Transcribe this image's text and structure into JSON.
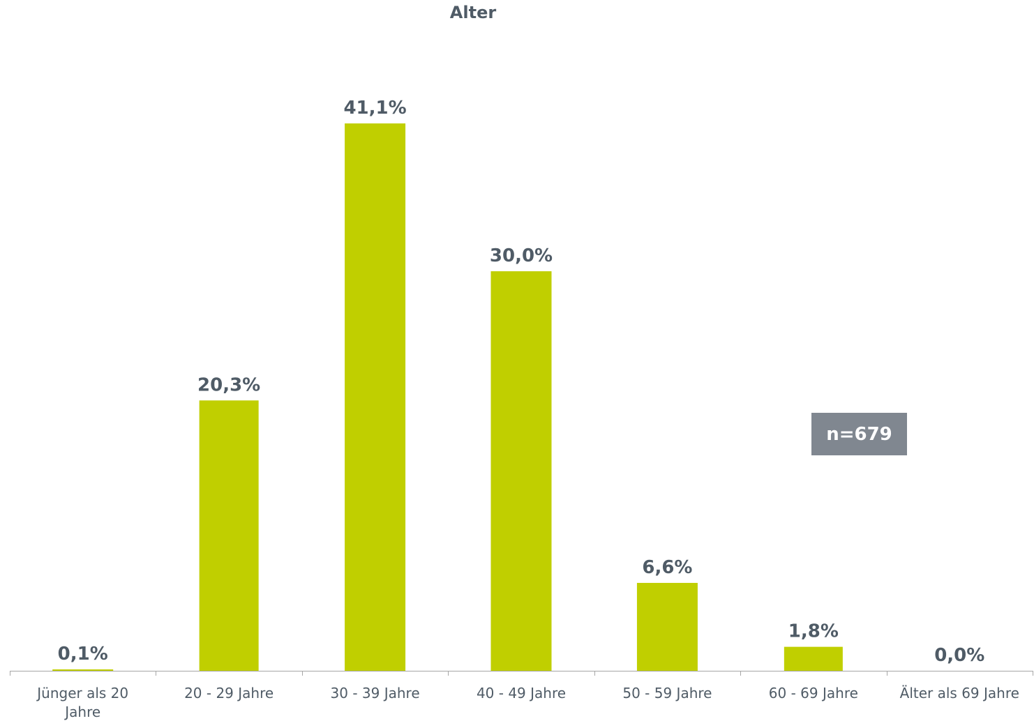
{
  "chart_data": {
    "type": "bar",
    "title": "Alter",
    "categories": [
      "Jünger als 20 Jahre",
      "20 - 29 Jahre",
      "30 - 39 Jahre",
      "40 - 49 Jahre",
      "50 - 59 Jahre",
      "60 - 69 Jahre",
      "Älter als 69 Jahre"
    ],
    "category_lines": [
      [
        "Jünger als 20",
        "Jahre"
      ],
      [
        "20 - 29 Jahre"
      ],
      [
        "30 - 39 Jahre"
      ],
      [
        "40 - 49 Jahre"
      ],
      [
        "50 - 59 Jahre"
      ],
      [
        "60 - 69 Jahre"
      ],
      [
        "Älter als 69 Jahre"
      ]
    ],
    "values": [
      0.1,
      20.3,
      41.1,
      30.0,
      6.6,
      1.8,
      0.0
    ],
    "data_labels": [
      "0,1%",
      "20,3%",
      "41,1%",
      "30,0%",
      "6,6%",
      "1,8%",
      "0,0%"
    ],
    "xlabel": "",
    "ylabel": "",
    "ylim": [
      0,
      45
    ],
    "grid": false,
    "legend": "none",
    "annotation": "n=679",
    "colors": {
      "bar": "#c0cf00",
      "text": "#4f5b66",
      "axis": "#a6a6a6",
      "badge": "#808790"
    }
  }
}
